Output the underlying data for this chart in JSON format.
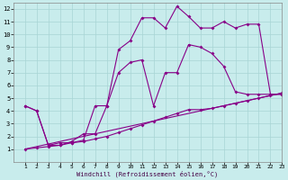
{
  "xlabel": "Windchill (Refroidissement éolien,°C)",
  "bg_color": "#c8ecec",
  "grid_color": "#a8d4d4",
  "line_color": "#880088",
  "xlim": [
    0,
    23
  ],
  "ylim": [
    0,
    12.5
  ],
  "xticks": [
    1,
    2,
    3,
    4,
    5,
    6,
    7,
    8,
    9,
    10,
    11,
    12,
    13,
    14,
    15,
    16,
    17,
    18,
    19,
    20,
    21,
    22,
    23
  ],
  "yticks": [
    1,
    2,
    3,
    4,
    5,
    6,
    7,
    8,
    9,
    10,
    11,
    12
  ],
  "curve1_x": [
    1,
    2,
    3,
    4,
    5,
    6,
    7,
    8,
    9,
    10,
    11,
    12,
    13,
    14,
    15,
    16,
    17,
    18,
    19,
    20,
    21,
    22,
    23
  ],
  "curve1_y": [
    4.4,
    4.0,
    1.3,
    1.3,
    1.6,
    2.2,
    2.2,
    4.4,
    8.8,
    9.5,
    11.3,
    11.3,
    10.5,
    12.2,
    11.4,
    10.5,
    10.5,
    11.0,
    10.5,
    10.8,
    10.8,
    5.3,
    5.3
  ],
  "curve2_x": [
    1,
    2,
    3,
    4,
    5,
    6,
    7,
    8,
    9,
    10,
    11,
    12,
    13,
    14,
    15,
    16,
    17,
    18,
    19,
    20,
    21,
    22,
    23
  ],
  "curve2_y": [
    4.4,
    4.0,
    1.3,
    1.5,
    1.5,
    1.7,
    4.4,
    4.4,
    7.0,
    7.8,
    8.0,
    4.4,
    7.0,
    7.0,
    9.2,
    9.0,
    8.5,
    7.5,
    5.5,
    5.3,
    5.3,
    5.3,
    5.3
  ],
  "curve3_x": [
    1,
    2,
    3,
    4,
    5,
    6,
    7,
    8,
    9,
    10,
    11,
    12,
    13,
    14,
    15,
    16,
    17,
    18,
    19,
    20,
    21,
    22,
    23
  ],
  "curve3_y": [
    1.0,
    1.1,
    1.2,
    1.3,
    1.5,
    1.6,
    1.8,
    2.0,
    2.3,
    2.6,
    2.9,
    3.2,
    3.5,
    3.8,
    4.1,
    4.1,
    4.2,
    4.4,
    4.6,
    4.8,
    5.0,
    5.2,
    5.4
  ],
  "curve4_x": [
    1,
    23
  ],
  "curve4_y": [
    1.0,
    5.4
  ]
}
